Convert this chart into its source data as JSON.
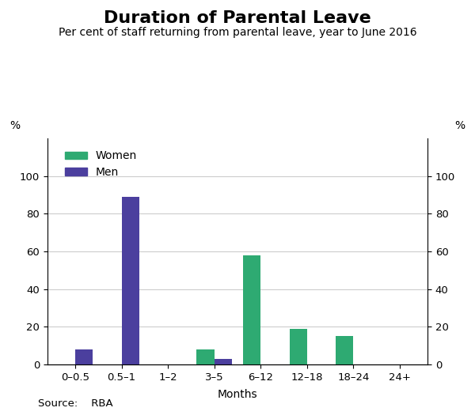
{
  "title": "Duration of Parental Leave",
  "subtitle": "Per cent of staff returning from parental leave, year to June 2016",
  "xlabel": "Months",
  "ylabel_left": "%",
  "ylabel_right": "%",
  "categories": [
    "0–0.5",
    "0.5–1",
    "1–2",
    "3–5",
    "6–12",
    "12–18",
    "18–24",
    "24+"
  ],
  "women_values": [
    0,
    0,
    0,
    8,
    58,
    19,
    15,
    0
  ],
  "men_values": [
    8,
    89,
    0,
    3,
    0,
    0,
    0,
    0
  ],
  "women_color": "#2EAA72",
  "men_color": "#4B3F9E",
  "ylim": [
    0,
    120
  ],
  "yticks": [
    0,
    20,
    40,
    60,
    80,
    100
  ],
  "bar_width": 0.38,
  "source": "Source:    RBA",
  "background_color": "#ffffff",
  "grid_color": "#cccccc",
  "title_fontsize": 16,
  "subtitle_fontsize": 10,
  "label_fontsize": 10,
  "tick_fontsize": 9.5,
  "legend_fontsize": 10
}
